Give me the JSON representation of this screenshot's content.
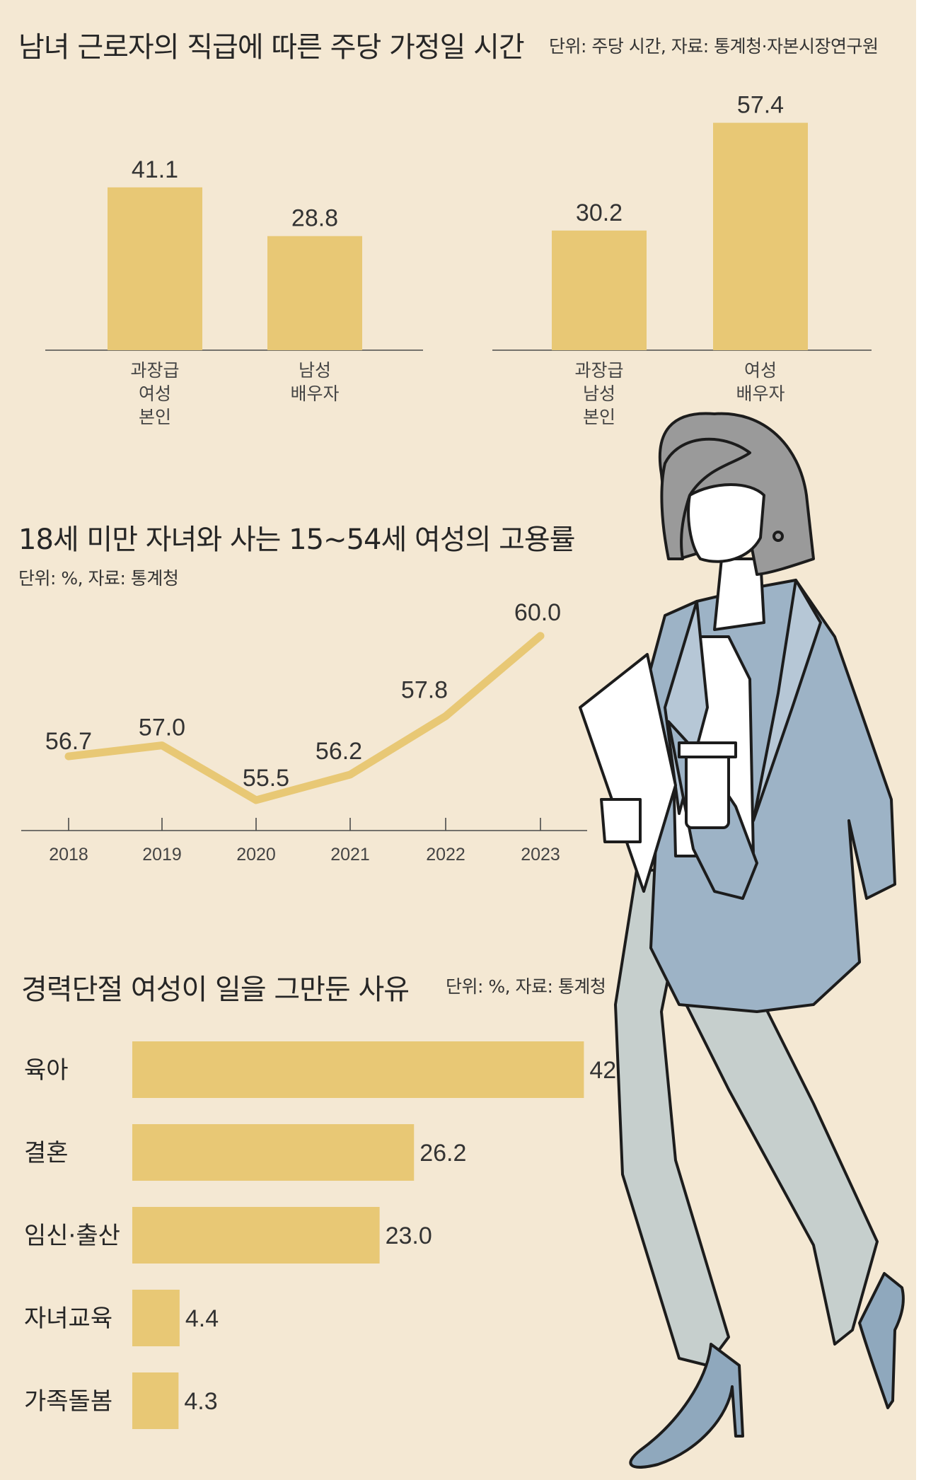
{
  "chart_data": [
    {
      "id": "housework",
      "type": "bar",
      "title": "남녀 근로자의 직급에 따른 주당 가정일 시간",
      "note": "단위: 주당 시간, 자료: 통계청·자본시장연구원",
      "groups": [
        {
          "categories": [
            [
              "과장급",
              "여성",
              "본인"
            ],
            [
              "남성",
              "배우자"
            ]
          ],
          "values": [
            41.1,
            28.8
          ],
          "value_labels": [
            "41.1",
            "28.8"
          ]
        },
        {
          "categories": [
            [
              "과장급",
              "남성",
              "본인"
            ],
            [
              "여성",
              "배우자"
            ]
          ],
          "values": [
            30.2,
            57.4
          ],
          "value_labels": [
            "30.2",
            "57.4"
          ]
        }
      ],
      "ylim": [
        0,
        60
      ],
      "bar_color": "#e8c875"
    },
    {
      "id": "employment",
      "type": "line",
      "title": "18세 미만 자녀와 사는 15~54세 여성의 고용률",
      "note": "단위: %, 자료: 통계청",
      "x": [
        "2018",
        "2019",
        "2020",
        "2021",
        "2022",
        "2023"
      ],
      "values": [
        56.7,
        57.0,
        55.5,
        56.2,
        57.8,
        60.0
      ],
      "value_labels": [
        "56.7",
        "57.0",
        "55.5",
        "56.2",
        "57.8",
        "60.0"
      ],
      "ylim": [
        55.5,
        60.0
      ],
      "line_color": "#e8c875"
    },
    {
      "id": "reasons",
      "type": "bar",
      "orientation": "horizontal",
      "title": "경력단절 여성이 일을 그만둔 사유",
      "note": "단위: %, 자료: 통계청",
      "categories": [
        "육아",
        "결혼",
        "임신·출산",
        "자녀교육",
        "가족돌봄"
      ],
      "values": [
        42.0,
        26.2,
        23.0,
        4.4,
        4.3
      ],
      "value_labels": [
        "42.0",
        "26.2",
        "23.0",
        "4.4",
        "4.3"
      ],
      "xlim": [
        0,
        42.0
      ],
      "bar_color": "#e8c875"
    }
  ],
  "illustration": {
    "subject": "walking-woman-with-coffee",
    "colors": {
      "hair": "#9a9a9a",
      "blazer": "#9db3c6",
      "trousers": "#c6cfcd",
      "shoes": "#8fa8bd",
      "outline": "#1c1c1c",
      "skin": "#ffffff"
    }
  }
}
